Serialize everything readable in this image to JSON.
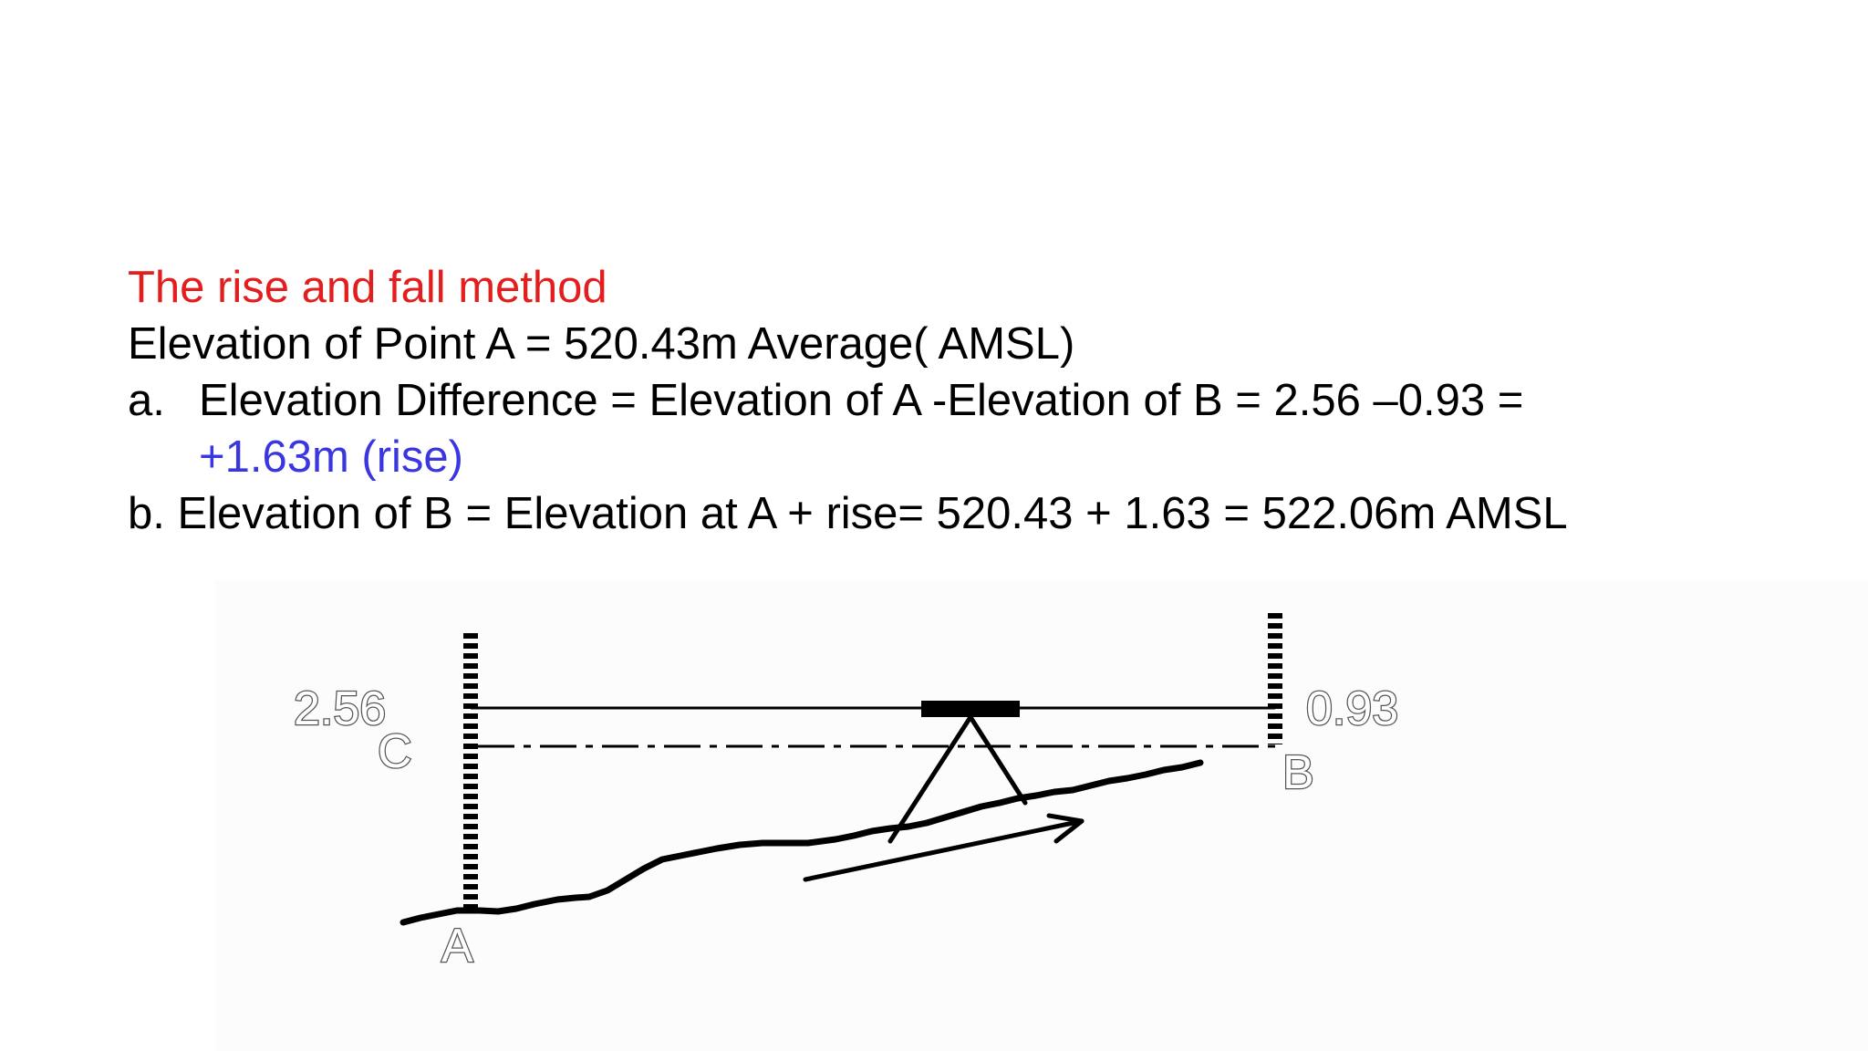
{
  "slide": {
    "title": "The rise and fall method",
    "elevation_a_line": "Elevation of Point A = 520.43m Average( AMSL)",
    "item_a_marker": "a.",
    "item_a_text": "Elevation Difference = Elevation of A -Elevation of B = 2.56 –0.93 =",
    "item_a_result": "+1.63m (rise)",
    "item_b_text": "b. Elevation of B = Elevation at A + rise= 520.43 + 1.63 = 522.06m AMSL"
  },
  "diagram": {
    "reading_a": "2.56",
    "reading_b": "0.93",
    "label_c": "C",
    "label_a": "A",
    "label_b": "B"
  },
  "colors": {
    "title": "#e31e1e",
    "rise": "#3a36e0",
    "text": "#000000"
  }
}
